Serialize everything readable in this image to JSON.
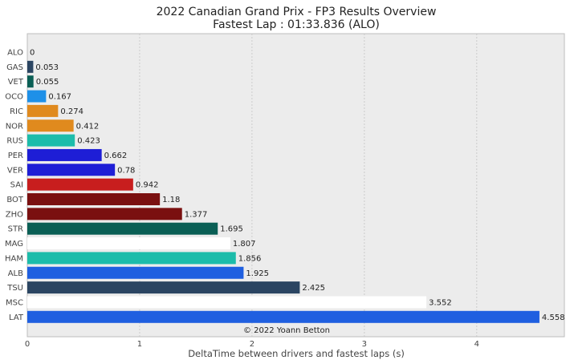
{
  "chart_data": {
    "type": "bar",
    "orientation": "horizontal",
    "title": "2022 Canadian Grand Prix - FP3 Results Overview",
    "subtitle": "Fastest Lap : 01:33.836 (ALO)",
    "xlabel": "DeltaTime between drivers and fastest laps (s)",
    "ylabel": "",
    "xlim": [
      0,
      4.78
    ],
    "xticks": [
      "0",
      "1",
      "2",
      "3",
      "4"
    ],
    "grid": true,
    "credit": "© 2022 Yoann Betton",
    "bars": [
      {
        "driver": "ALO",
        "value": 0,
        "label": "0",
        "color": "#1f5fe0"
      },
      {
        "driver": "GAS",
        "value": 0.053,
        "label": "0.053",
        "color": "#2b4562"
      },
      {
        "driver": "VET",
        "value": 0.055,
        "label": "0.055",
        "color": "#0a5f55"
      },
      {
        "driver": "OCO",
        "value": 0.167,
        "label": "0.167",
        "color": "#1e90e8"
      },
      {
        "driver": "RIC",
        "value": 0.274,
        "label": "0.274",
        "color": "#e08a1e"
      },
      {
        "driver": "NOR",
        "value": 0.412,
        "label": "0.412",
        "color": "#e08a1e"
      },
      {
        "driver": "RUS",
        "value": 0.423,
        "label": "0.423",
        "color": "#1cbcaa"
      },
      {
        "driver": "PER",
        "value": 0.662,
        "label": "0.662",
        "color": "#1e1ed6"
      },
      {
        "driver": "VER",
        "value": 0.78,
        "label": "0.78",
        "color": "#1e1ed6"
      },
      {
        "driver": "SAI",
        "value": 0.942,
        "label": "0.942",
        "color": "#c81e1e"
      },
      {
        "driver": "BOT",
        "value": 1.18,
        "label": "1.18",
        "color": "#7a1010"
      },
      {
        "driver": "ZHO",
        "value": 1.377,
        "label": "1.377",
        "color": "#7a1010"
      },
      {
        "driver": "STR",
        "value": 1.695,
        "label": "1.695",
        "color": "#0a5f55"
      },
      {
        "driver": "MAG",
        "value": 1.807,
        "label": "1.807",
        "color": "#ffffff"
      },
      {
        "driver": "HAM",
        "value": 1.856,
        "label": "1.856",
        "color": "#1cbcaa"
      },
      {
        "driver": "ALB",
        "value": 1.925,
        "label": "1.925",
        "color": "#1f5fe0"
      },
      {
        "driver": "TSU",
        "value": 2.425,
        "label": "2.425",
        "color": "#2b4562"
      },
      {
        "driver": "MSC",
        "value": 3.552,
        "label": "3.552",
        "color": "#ffffff"
      },
      {
        "driver": "LAT",
        "value": 4.558,
        "label": "4.558",
        "color": "#1f5fe0"
      }
    ]
  }
}
